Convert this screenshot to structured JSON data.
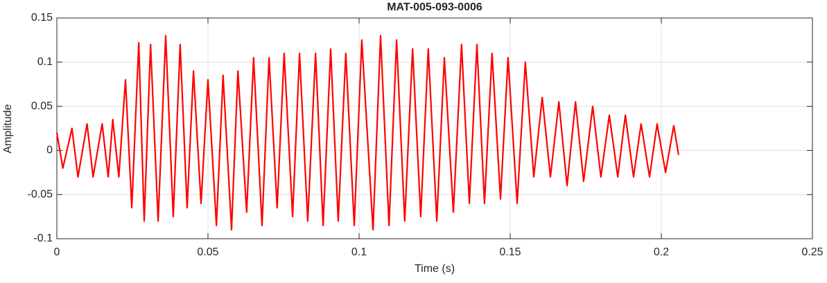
{
  "chart_data": {
    "type": "line",
    "title": "MAT-005-093-0006",
    "xlabel": "Time (s)",
    "ylabel": "Amplitude",
    "x": [
      0,
      0.002,
      0.005,
      0.007,
      0.01,
      0.012,
      0.015,
      0.017,
      0.0185,
      0.0205,
      0.0227,
      0.0248,
      0.0271,
      0.0289,
      0.031,
      0.0335,
      0.036,
      0.0385,
      0.0408,
      0.0431,
      0.0452,
      0.0477,
      0.05,
      0.0528,
      0.055,
      0.0578,
      0.0599,
      0.0628,
      0.0651,
      0.0679,
      0.0702,
      0.0729,
      0.0752,
      0.078,
      0.0803,
      0.083,
      0.0856,
      0.0881,
      0.0906,
      0.0931,
      0.0956,
      0.0984,
      0.1009,
      0.1046,
      0.1071,
      0.1099,
      0.1124,
      0.1151,
      0.1177,
      0.1204,
      0.1229,
      0.1257,
      0.1282,
      0.1312,
      0.1339,
      0.1365,
      0.139,
      0.1415,
      0.144,
      0.1468,
      0.1493,
      0.1523,
      0.155,
      0.1578,
      0.1606,
      0.1633,
      0.1661,
      0.1688,
      0.1716,
      0.1743,
      0.1773,
      0.18,
      0.1828,
      0.1856,
      0.1881,
      0.1908,
      0.1933,
      0.1961,
      0.1986,
      0.2014,
      0.2041,
      0.2057
    ],
    "values": [
      0.02,
      -0.02,
      0.025,
      -0.03,
      0.03,
      -0.03,
      0.03,
      -0.03,
      0.035,
      -0.03,
      0.08,
      -0.065,
      0.122,
      -0.08,
      0.12,
      -0.08,
      0.13,
      -0.075,
      0.12,
      -0.065,
      0.09,
      -0.06,
      0.08,
      -0.085,
      0.085,
      -0.09,
      0.09,
      -0.07,
      0.105,
      -0.085,
      0.105,
      -0.065,
      0.11,
      -0.075,
      0.11,
      -0.08,
      0.11,
      -0.085,
      0.115,
      -0.08,
      0.11,
      -0.085,
      0.125,
      -0.09,
      0.13,
      -0.085,
      0.125,
      -0.08,
      0.115,
      -0.075,
      0.115,
      -0.08,
      0.105,
      -0.07,
      0.12,
      -0.06,
      0.12,
      -0.06,
      0.11,
      -0.055,
      0.105,
      -0.06,
      0.1,
      -0.03,
      0.06,
      -0.03,
      0.055,
      -0.04,
      0.055,
      -0.035,
      0.05,
      -0.03,
      0.04,
      -0.03,
      0.04,
      -0.03,
      0.03,
      -0.03,
      0.03,
      -0.025,
      0.028,
      -0.005
    ],
    "color": "#ff0000",
    "xlim": [
      0,
      0.25
    ],
    "xticks": [
      0,
      0.05,
      0.1,
      0.15,
      0.2,
      0.25
    ],
    "ylim": [
      -0.1,
      0.15
    ],
    "yticks": [
      -0.1,
      -0.05,
      0,
      0.05,
      0.1,
      0.15
    ],
    "grid": true
  }
}
